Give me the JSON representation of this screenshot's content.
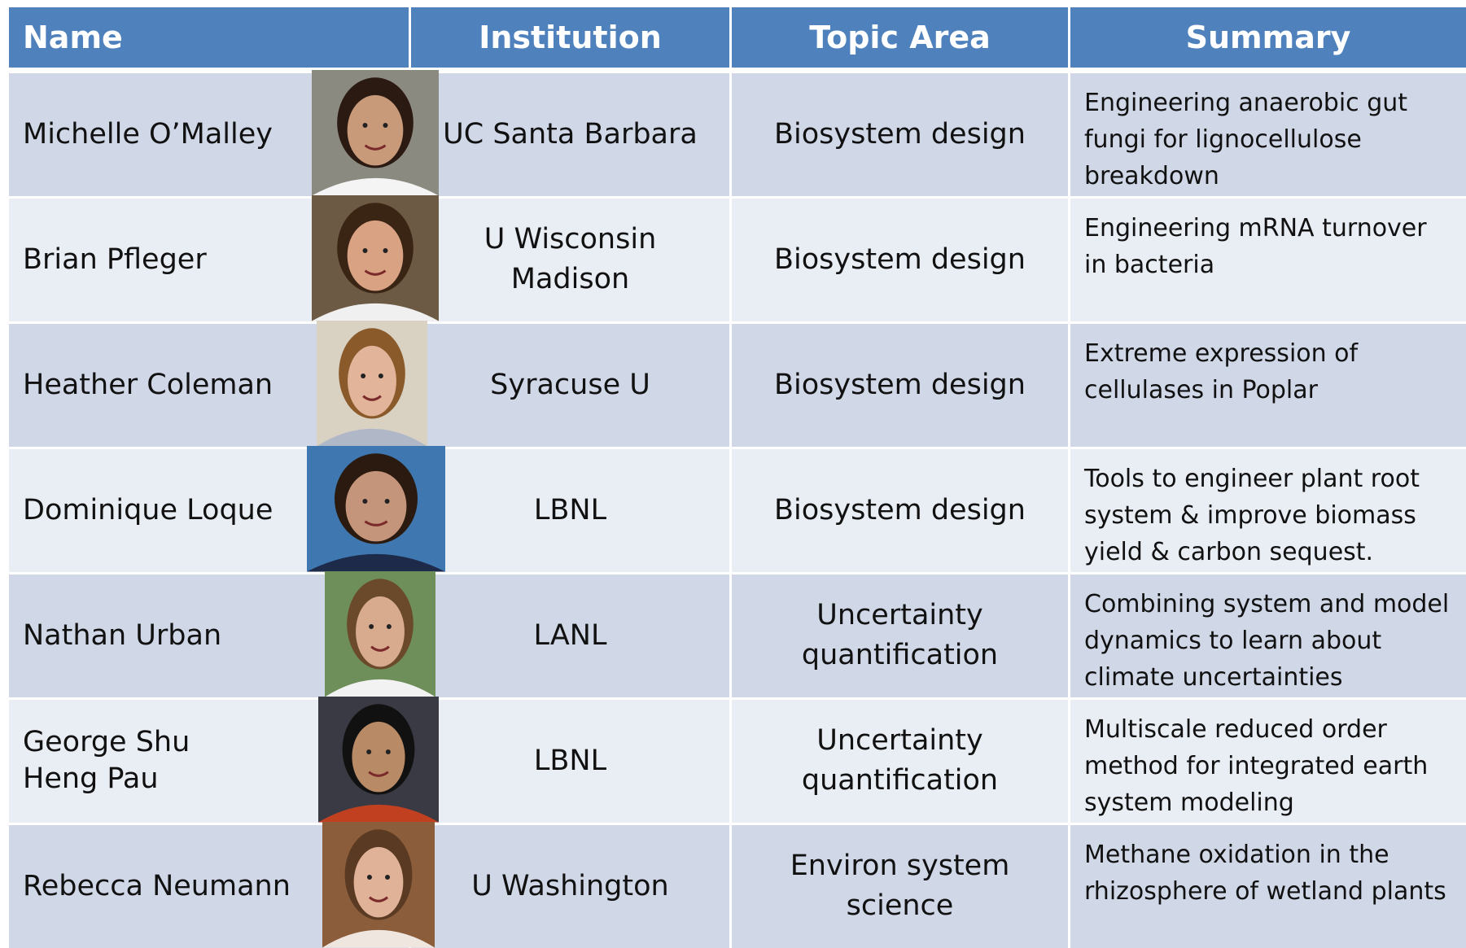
{
  "table": {
    "header": [
      "Name",
      "Institution",
      "Topic Area",
      "Summary"
    ],
    "rows": [
      [
        "Michelle O’Malley",
        "UC Santa Barbara",
        "Biosystem design",
        "Engineering anaerobic gut fungi for lignocellulose breakdown"
      ],
      [
        "Brian Pfleger",
        "U Wisconsin\nMadison",
        "Biosystem design",
        "Engineering mRNA turnover in bacteria"
      ],
      [
        "Heather Coleman",
        "Syracuse  U",
        "Biosystem design",
        "Extreme expression of cellulases in Poplar"
      ],
      [
        "Dominique Loque",
        "LBNL",
        "Biosystem design",
        "Tools to engineer plant root system & improve biomass yield & carbon sequest."
      ],
      [
        "Nathan Urban",
        "LANL",
        "Uncertainty\nquantification",
        "Combining system and model dynamics to learn about climate uncertainties"
      ],
      [
        "George Shu\nHeng Pau",
        "LBNL",
        "Uncertainty\nquantification",
        "Multiscale reduced order method for integrated earth system modeling"
      ],
      [
        "Rebecca Neumann",
        "U Washington",
        "Environ system\nscience",
        "Methane oxidation in the rhizosphere of wetland plants"
      ]
    ]
  }
}
